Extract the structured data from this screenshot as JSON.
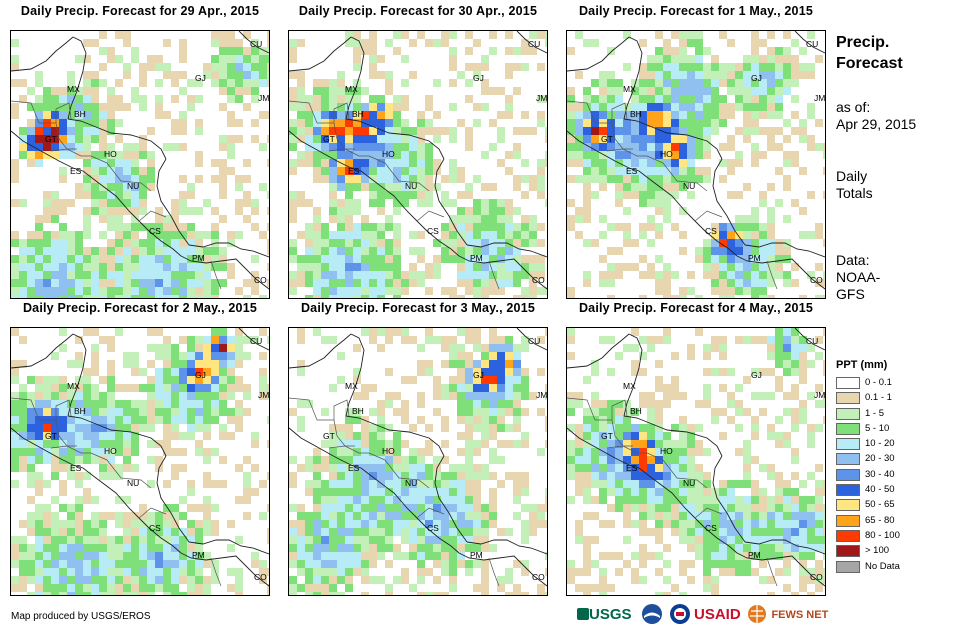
{
  "panels": [
    {
      "title": "Daily  Precip.  Forecast for 29 Apr., 2015",
      "seed": 11,
      "hot": [
        [
          40,
          110
        ],
        [
          40,
          95
        ],
        [
          25,
          115
        ]
      ],
      "wet": [
        [
          60,
          90,
          55
        ],
        [
          110,
          150,
          45
        ],
        [
          150,
          250,
          80
        ],
        [
          230,
          40,
          40
        ],
        [
          40,
          250,
          70
        ]
      ]
    },
    {
      "title": "Daily  Precip.  Forecast for 30 Apr., 2015",
      "seed": 23,
      "hot": [
        [
          45,
          100
        ],
        [
          70,
          95
        ],
        [
          90,
          85
        ],
        [
          60,
          140
        ]
      ],
      "wet": [
        [
          50,
          100,
          60
        ],
        [
          100,
          130,
          60
        ],
        [
          60,
          240,
          70
        ],
        [
          200,
          220,
          60
        ]
      ]
    },
    {
      "title": "Daily  Precip.  Forecast for 1 May., 2015",
      "seed": 37,
      "hot": [
        [
          30,
          100
        ],
        [
          90,
          90
        ],
        [
          110,
          120
        ],
        [
          160,
          210
        ]
      ],
      "wet": [
        [
          40,
          100,
          60
        ],
        [
          120,
          60,
          60
        ],
        [
          90,
          120,
          60
        ],
        [
          180,
          230,
          50
        ],
        [
          200,
          50,
          40
        ]
      ]
    },
    {
      "title": "Daily  Precip.  Forecast for 2 May., 2015",
      "seed": 41,
      "hot": [
        [
          35,
          95
        ],
        [
          210,
          20
        ],
        [
          190,
          45
        ]
      ],
      "wet": [
        [
          30,
          100,
          60
        ],
        [
          90,
          100,
          55
        ],
        [
          180,
          60,
          60
        ],
        [
          60,
          240,
          70
        ],
        [
          150,
          230,
          60
        ]
      ]
    },
    {
      "title": "Daily  Precip.  Forecast for 3 May., 2015",
      "seed": 53,
      "hot": [
        [
          215,
          30
        ],
        [
          200,
          50
        ]
      ],
      "wet": [
        [
          80,
          150,
          70
        ],
        [
          150,
          190,
          70
        ],
        [
          40,
          220,
          60
        ],
        [
          200,
          60,
          50
        ]
      ]
    },
    {
      "title": "Daily  Precip.  Forecast for 4 May., 2015",
      "seed": 67,
      "hot": [
        [
          80,
          140
        ],
        [
          70,
          120
        ]
      ],
      "wet": [
        [
          40,
          120,
          60
        ],
        [
          90,
          150,
          60
        ],
        [
          160,
          200,
          60
        ],
        [
          220,
          20,
          30
        ],
        [
          230,
          200,
          50
        ]
      ]
    }
  ],
  "country_labels": [
    "MX",
    "BH",
    "GT",
    "HO",
    "ES",
    "NU",
    "CS",
    "PM",
    "CU",
    "GJ",
    "JM",
    "CO"
  ],
  "sidebar": {
    "title_line1": "Precip.",
    "title_line2": "Forecast",
    "asof_line1": "as of:",
    "asof_line2": "Apr 29, 2015",
    "daily_line1": "Daily",
    "daily_line2": "Totals",
    "data_line1": "Data:",
    "data_line2": "NOAA-",
    "data_line3": "GFS"
  },
  "legend": {
    "title": "PPT (mm)",
    "items": [
      {
        "label": "0 - 0.1",
        "color": "#ffffff"
      },
      {
        "label": "0.1 - 1",
        "color": "#e8d6b0"
      },
      {
        "label": "1 - 5",
        "color": "#c2f0b8"
      },
      {
        "label": "5 - 10",
        "color": "#7fe07a"
      },
      {
        "label": "10 - 20",
        "color": "#b7ecf7"
      },
      {
        "label": "20 - 30",
        "color": "#8fc0f0"
      },
      {
        "label": "30 - 40",
        "color": "#5d93e8"
      },
      {
        "label": "40 - 50",
        "color": "#2d62df"
      },
      {
        "label": "50 - 65",
        "color": "#ffe680"
      },
      {
        "label": "65 - 80",
        "color": "#ffa41a"
      },
      {
        "label": "80 - 100",
        "color": "#ff3a00"
      },
      {
        "label": "> 100",
        "color": "#a11818"
      },
      {
        "label": "No Data",
        "color": "#a6a6a6"
      }
    ]
  },
  "footer": {
    "credit": "Map produced by USGS/EROS",
    "logo_usgs": "USGS",
    "logo_usaid": "USAID",
    "logo_fews": "FEWS NET"
  }
}
